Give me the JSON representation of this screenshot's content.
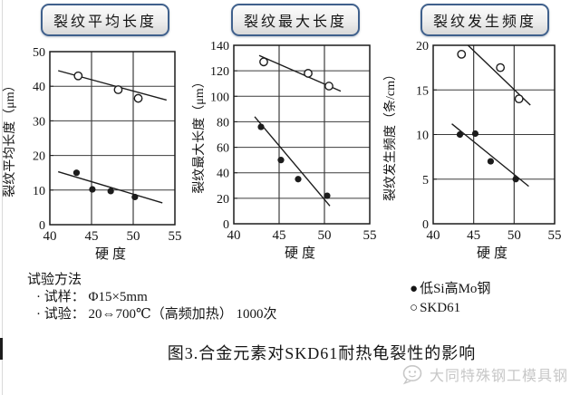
{
  "page": {
    "caption": "图3.合金元素对SKD61耐热龟裂性的影响",
    "watermark": "大同特殊钢工模具钢"
  },
  "test_method": {
    "title": "试验方法",
    "items": [
      "· 试样： Φ15×5mm",
      "· 试验： 20⇔700℃（高频加热） 1000次"
    ]
  },
  "legend": {
    "position": "below-right",
    "entries": [
      {
        "marker": "●",
        "label": "低Si高Mo钢"
      },
      {
        "marker": "○",
        "label": "SKD61"
      }
    ]
  },
  "colors": {
    "title_box_border": "#3f608c",
    "plot_line": "#1c1c1c",
    "grid_line": "#3c3c3c",
    "watermark_gray": "#c7c7c7"
  },
  "chart_data": [
    {
      "type": "scatter",
      "title": "裂纹平均长度",
      "xlabel": "硬度",
      "ylabel": "裂纹平均长度（μm）",
      "xlim": [
        40,
        55
      ],
      "xticks": [
        40,
        45,
        50,
        55
      ],
      "ylim": [
        0,
        50
      ],
      "yticks": [
        0,
        10,
        20,
        30,
        40,
        50
      ],
      "grid": true,
      "series": [
        {
          "name": "SKD61",
          "marker": "open",
          "points": [
            [
              43.4,
              43
            ],
            [
              48.2,
              39
            ],
            [
              50.6,
              36.5
            ]
          ],
          "trend": [
            [
              41,
              44.5
            ],
            [
              54,
              36
            ]
          ]
        },
        {
          "name": "低Si高Mo钢",
          "marker": "filled",
          "points": [
            [
              43.2,
              15
            ],
            [
              45.1,
              10.2
            ],
            [
              47.3,
              9.7
            ],
            [
              50.2,
              8
            ]
          ],
          "trend": [
            [
              41,
              15.3
            ],
            [
              53.5,
              6.3
            ]
          ]
        }
      ]
    },
    {
      "type": "scatter",
      "title": "裂纹最大长度",
      "xlabel": "硬度",
      "ylabel": "裂纹最大长度（μm）",
      "xlim": [
        40,
        55
      ],
      "xticks": [
        40,
        45,
        50,
        55
      ],
      "ylim": [
        0,
        140
      ],
      "yticks": [
        0,
        20,
        40,
        60,
        80,
        100,
        120,
        140
      ],
      "grid": true,
      "series": [
        {
          "name": "SKD61",
          "marker": "open",
          "points": [
            [
              43.3,
              127
            ],
            [
              48.2,
              118
            ],
            [
              50.5,
              108
            ]
          ],
          "trend": [
            [
              42.8,
              132
            ],
            [
              51.8,
              104
            ]
          ]
        },
        {
          "name": "低Si高Mo钢",
          "marker": "filled",
          "points": [
            [
              43,
              76
            ],
            [
              45.2,
              50
            ],
            [
              47.1,
              35
            ],
            [
              50.3,
              22
            ]
          ],
          "trend": [
            [
              42.3,
              84
            ],
            [
              50.6,
              14
            ]
          ]
        }
      ]
    },
    {
      "type": "scatter",
      "title": "裂纹发生频度",
      "xlabel": "硬度",
      "ylabel": "裂纹发生频度（条/cm）",
      "xlim": [
        40,
        55
      ],
      "xticks": [
        40,
        45,
        50,
        55
      ],
      "ylim": [
        0,
        20
      ],
      "yticks": [
        0,
        5,
        10,
        15,
        20
      ],
      "grid": true,
      "series": [
        {
          "name": "SKD61",
          "marker": "open",
          "points": [
            [
              43.5,
              19
            ],
            [
              48.3,
              17.5
            ],
            [
              50.6,
              14
            ]
          ],
          "trend": [
            [
              44.3,
              20
            ],
            [
              52,
              13.3
            ]
          ]
        },
        {
          "name": "低Si高Mo钢",
          "marker": "filled",
          "points": [
            [
              43.3,
              10
            ],
            [
              45.2,
              10.1
            ],
            [
              47.1,
              7
            ],
            [
              50.2,
              5
            ]
          ],
          "trend": [
            [
              42.3,
              11.2
            ],
            [
              51.8,
              4.2
            ]
          ]
        }
      ]
    }
  ]
}
